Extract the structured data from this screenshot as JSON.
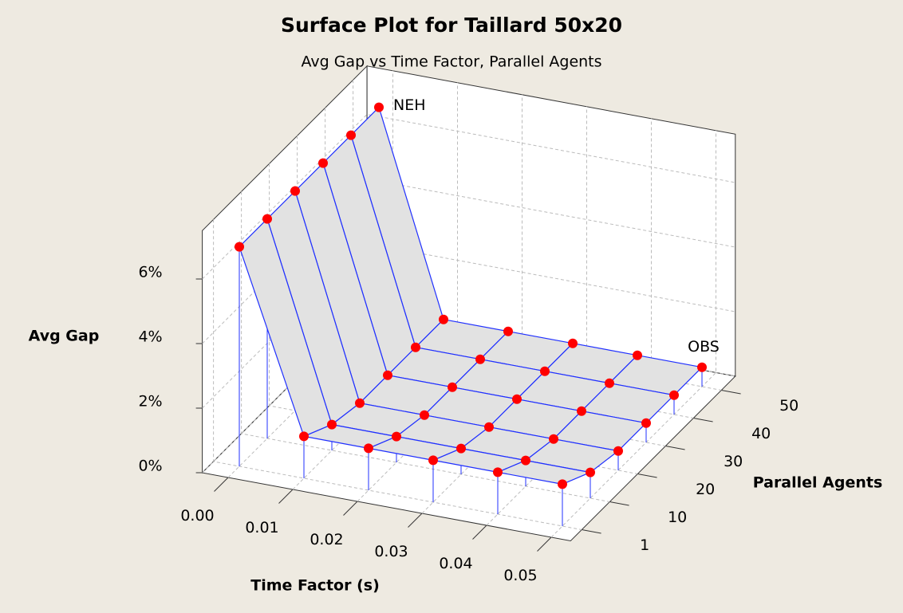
{
  "chart_data": {
    "type": "surface",
    "title": "Surface Plot for Taillard 50x20",
    "subtitle": "Avg Gap vs Time Factor, Parallel Agents",
    "x_label": "Time Factor (s)",
    "y_label": "Parallel Agents",
    "z_label": "Avg Gap",
    "x": [
      0,
      0.01,
      0.02,
      0.03,
      0.04,
      0.05
    ],
    "xticks": [
      {
        "value": 0,
        "label": "0.00"
      },
      {
        "value": 0.01,
        "label": "0.01"
      },
      {
        "value": 0.02,
        "label": "0.02"
      },
      {
        "value": 0.03,
        "label": "0.03"
      },
      {
        "value": 0.04,
        "label": "0.04"
      },
      {
        "value": 0.05,
        "label": "0.05"
      }
    ],
    "y_categories": [
      "1",
      "10",
      "20",
      "30",
      "40",
      "50"
    ],
    "z": [
      [
        6.8,
        1.3,
        1.3,
        1.3,
        1.3,
        1.3
      ],
      [
        6.8,
        0.8,
        0.8,
        0.8,
        0.8,
        0.8
      ],
      [
        6.8,
        0.6,
        0.6,
        0.6,
        0.6,
        0.6
      ],
      [
        6.8,
        0.6,
        0.6,
        0.6,
        0.6,
        0.6
      ],
      [
        6.8,
        0.6,
        0.6,
        0.6,
        0.6,
        0.6
      ],
      [
        6.8,
        0.6,
        0.6,
        0.6,
        0.6,
        0.6
      ]
    ],
    "zlim": [
      0,
      7.5
    ],
    "zticks": [
      {
        "value": 0,
        "label": "0%"
      },
      {
        "value": 2,
        "label": "2%"
      },
      {
        "value": 4,
        "label": "4%"
      },
      {
        "value": 6,
        "label": "6%"
      }
    ],
    "annotations": [
      {
        "text": "NEH"
      },
      {
        "text": "OBS"
      }
    ],
    "surface_color": "#e2e2e2",
    "line_color": "#2030ff",
    "point_color": "#ff0000",
    "grid": true
  }
}
